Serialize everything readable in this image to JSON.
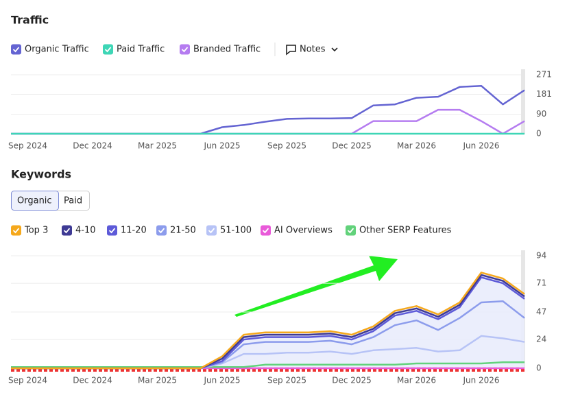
{
  "ui": {
    "notes": "Notes",
    "tabs": [
      "Organic",
      "Paid"
    ]
  },
  "chart_data": [
    {
      "type": "line",
      "title": "Traffic",
      "x": [
        "2024-08",
        "2024-09",
        "2024-10",
        "2024-11",
        "2024-12",
        "2025-01",
        "2025-02",
        "2025-03",
        "2025-04",
        "2025-05",
        "2025-06",
        "2025-07",
        "2025-08",
        "2025-09",
        "2025-10",
        "2025-11",
        "2025-12",
        "2026-01",
        "2026-02",
        "2026-03",
        "2026-04",
        "2026-05",
        "2026-06",
        "2026-07",
        "2026-08"
      ],
      "xlim": [
        "2024-08",
        "2026-08"
      ],
      "xticks": [
        {
          "value": "2024-09",
          "label": "Sep 2024"
        },
        {
          "value": "2024-12",
          "label": "Dec 2024"
        },
        {
          "value": "2025-03",
          "label": "Mar 2025"
        },
        {
          "value": "2025-06",
          "label": "Jun 2025"
        },
        {
          "value": "2025-09",
          "label": "Sep 2025"
        },
        {
          "value": "2025-12",
          "label": "Dec 2025"
        },
        {
          "value": "2026-03",
          "label": "Mar 2026"
        },
        {
          "value": "2026-06",
          "label": "Jun 2026"
        }
      ],
      "ylim": [
        0,
        271
      ],
      "yticks": [
        0,
        90,
        181,
        271
      ],
      "grid": true,
      "series": [
        {
          "name": "Organic Traffic",
          "color": "#6464d2",
          "values": [
            0,
            0,
            0,
            0,
            0,
            0,
            0,
            0,
            0,
            0,
            30,
            40,
            55,
            68,
            70,
            70,
            72,
            130,
            135,
            165,
            170,
            215,
            220,
            135,
            200
          ]
        },
        {
          "name": "Paid Traffic",
          "color": "#3ed6b6",
          "values": [
            0,
            0,
            0,
            0,
            0,
            0,
            0,
            0,
            0,
            0,
            0,
            0,
            0,
            0,
            0,
            0,
            0,
            0,
            0,
            0,
            0,
            0,
            0,
            0,
            0
          ]
        },
        {
          "name": "Branded Traffic",
          "color": "#b57cf0",
          "values": [
            0,
            0,
            0,
            0,
            0,
            0,
            0,
            0,
            0,
            0,
            0,
            0,
            0,
            0,
            0,
            0,
            0,
            58,
            58,
            58,
            110,
            110,
            58,
            0,
            58
          ]
        }
      ]
    },
    {
      "type": "stacked_area",
      "title": "Keywords",
      "x": [
        "2024-08",
        "2024-09",
        "2024-10",
        "2024-11",
        "2024-12",
        "2025-01",
        "2025-02",
        "2025-03",
        "2025-04",
        "2025-05",
        "2025-06",
        "2025-07",
        "2025-08",
        "2025-09",
        "2025-10",
        "2025-11",
        "2025-12",
        "2026-01",
        "2026-02",
        "2026-03",
        "2026-04",
        "2026-05",
        "2026-06",
        "2026-07",
        "2026-08"
      ],
      "xlim": [
        "2024-08",
        "2026-08"
      ],
      "xticks": [
        {
          "value": "2024-09",
          "label": "Sep 2024"
        },
        {
          "value": "2024-12",
          "label": "Dec 2024"
        },
        {
          "value": "2025-03",
          "label": "Mar 2025"
        },
        {
          "value": "2025-06",
          "label": "Jun 2025"
        },
        {
          "value": "2025-09",
          "label": "Sep 2025"
        },
        {
          "value": "2025-12",
          "label": "Dec 2025"
        },
        {
          "value": "2026-03",
          "label": "Mar 2026"
        },
        {
          "value": "2026-06",
          "label": "Jun 2026"
        }
      ],
      "ylim": [
        0,
        94
      ],
      "yticks": [
        0,
        24,
        47,
        71,
        94
      ],
      "grid": true,
      "series": [
        {
          "name": "Top 3",
          "color": "#f5a81c",
          "values": [
            0,
            0,
            0,
            0,
            0,
            0,
            0,
            0,
            0,
            0,
            2,
            2,
            2,
            2,
            2,
            2,
            2,
            2,
            2,
            2,
            2,
            2,
            2,
            2,
            2
          ]
        },
        {
          "name": "4-10",
          "color": "#3e3a94",
          "values": [
            0,
            0,
            0,
            0,
            0,
            0,
            0,
            0,
            0,
            0,
            2,
            2,
            2,
            2,
            2,
            2,
            2,
            2,
            2,
            2,
            2,
            2,
            2,
            2,
            2
          ]
        },
        {
          "name": "11-20",
          "color": "#5d5ad8",
          "values": [
            0,
            0,
            0,
            0,
            0,
            0,
            0,
            0,
            0,
            0,
            1,
            4,
            4,
            4,
            4,
            4,
            4,
            5,
            8,
            8,
            9,
            9,
            21,
            15,
            16
          ]
        },
        {
          "name": "21-50",
          "color": "#8c9cec",
          "values": [
            0,
            0,
            0,
            0,
            0,
            0,
            0,
            0,
            0,
            0,
            1,
            8,
            10,
            9,
            9,
            9,
            8,
            11,
            20,
            23,
            18,
            27,
            28,
            31,
            20
          ]
        },
        {
          "name": "51-100",
          "color": "#b7c3f6",
          "values": [
            0,
            0,
            0,
            0,
            0,
            0,
            0,
            0,
            0,
            0,
            4,
            12,
            12,
            13,
            13,
            14,
            12,
            15,
            16,
            17,
            14,
            15,
            27,
            25,
            22
          ]
        },
        {
          "name": "AI Overviews",
          "color": "#e95ad9",
          "stacked": false,
          "values": [
            0,
            0,
            0,
            0,
            0,
            0,
            0,
            0,
            0,
            0,
            0,
            0,
            0,
            0,
            0,
            0,
            0,
            0,
            0,
            0,
            0,
            0,
            0,
            0,
            0
          ]
        },
        {
          "name": "Other SERP Features",
          "color": "#62d27b",
          "stacked": false,
          "values": [
            1,
            1,
            1,
            1,
            1,
            1,
            1,
            1,
            1,
            1,
            1,
            1,
            3,
            3,
            3,
            3,
            3,
            3,
            3,
            4,
            4,
            4,
            4,
            5,
            5
          ]
        }
      ]
    }
  ]
}
